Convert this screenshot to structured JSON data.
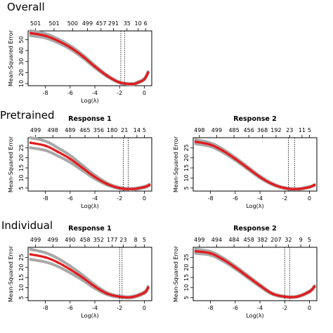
{
  "sections": [
    {
      "title": "Overall",
      "panels": [
        {
          "subtitle": "",
          "ylabel": "Mean-Squared Error",
          "xlabel": "Log(λ)",
          "top_ticks": [
            "501",
            "501",
            "500",
            "499",
            "457",
            "291",
            "35",
            "10",
            "6"
          ],
          "x_ticks": [
            "-8",
            "-6",
            "-4",
            "-2",
            "0"
          ],
          "y_ticks": [
            "10",
            "20",
            "30",
            "40",
            "50"
          ]
        }
      ]
    },
    {
      "title": "Pretrained",
      "panels": [
        {
          "subtitle": "Response 1",
          "ylabel": "Mean-Squared Error",
          "xlabel": "Log(λ)",
          "top_ticks": [
            "499",
            "498",
            "489",
            "465",
            "356",
            "180",
            "21",
            "14",
            "5"
          ],
          "x_ticks": [
            "-8",
            "-6",
            "-4",
            "-2",
            "0"
          ],
          "y_ticks": [
            "5",
            "10",
            "15",
            "20",
            "25"
          ]
        },
        {
          "subtitle": "Response 2",
          "ylabel": "Mean-Squared Error",
          "xlabel": "Log(λ)",
          "top_ticks": [
            "498",
            "499",
            "485",
            "456",
            "368",
            "192",
            "23",
            "11",
            "5"
          ],
          "x_ticks": [
            "-8",
            "-6",
            "-4",
            "-2",
            "0"
          ],
          "y_ticks": [
            "5",
            "10",
            "15",
            "20",
            "25"
          ]
        }
      ]
    },
    {
      "title": "Individual",
      "panels": [
        {
          "subtitle": "Response 1",
          "ylabel": "Mean-Squared Error",
          "xlabel": "Log(λ)",
          "top_ticks": [
            "499",
            "499",
            "490",
            "458",
            "352",
            "177",
            "23",
            "8",
            "5"
          ],
          "x_ticks": [
            "-8",
            "-6",
            "-4",
            "-2",
            "0"
          ],
          "y_ticks": [
            "5",
            "10",
            "15",
            "20",
            "25"
          ]
        },
        {
          "subtitle": "Response 2",
          "ylabel": "Mean-Squared Error",
          "xlabel": "Log(λ)",
          "top_ticks": [
            "499",
            "494",
            "484",
            "458",
            "382",
            "207",
            "32",
            "9",
            "5"
          ],
          "x_ticks": [
            "-8",
            "-6",
            "-4",
            "-2",
            "0"
          ],
          "y_ticks": [
            "5",
            "10",
            "15",
            "20",
            "25"
          ]
        }
      ]
    }
  ],
  "colors": {
    "curve": "#e41a1c",
    "band": "#a8a8a8",
    "axis": "#000000"
  },
  "chart_data": [
    {
      "type": "line",
      "panel": "overall",
      "title": "Overall",
      "subtitle": "",
      "xlabel": "Log(λ)",
      "ylabel": "Mean-Squared Error",
      "xlim": [
        -9.4,
        0.6
      ],
      "ylim": [
        8,
        58
      ],
      "x_ticks": [
        -8,
        -6,
        -4,
        -2,
        0
      ],
      "y_ticks": [
        10,
        20,
        30,
        40,
        50
      ],
      "top_axis": {
        "x": [
          -8.8,
          -7.3,
          -5.8,
          -4.6,
          -3.5,
          -2.5,
          -1.4,
          -0.5,
          0.1
        ],
        "labels": [
          "501",
          "501",
          "500",
          "499",
          "457",
          "291",
          "35",
          "10",
          "6"
        ]
      },
      "vlines": [
        -1.9,
        -1.6
      ],
      "x": [
        -9.2,
        -8.0,
        -7.0,
        -6.0,
        -5.0,
        -4.0,
        -3.0,
        -2.0,
        -1.0,
        -0.5,
        0.0,
        0.3
      ],
      "y": [
        56,
        53.5,
        49,
        43,
        35,
        25.5,
        17,
        11,
        9.5,
        11,
        14,
        20
      ],
      "band": [
        2.2,
        2.0,
        1.8,
        1.6,
        1.4,
        1.1,
        0.7,
        0.4,
        0.4,
        0.5,
        0.6,
        0.8
      ],
      "grid": false,
      "legend": "none"
    },
    {
      "type": "line",
      "panel": "pretrained-response-1",
      "title": "Pretrained",
      "subtitle": "Response 1",
      "xlabel": "Log(λ)",
      "ylabel": "Mean-Squared Error",
      "xlim": [
        -9.4,
        0.6
      ],
      "ylim": [
        3.5,
        30
      ],
      "x_ticks": [
        -8,
        -6,
        -4,
        -2,
        0
      ],
      "y_ticks": [
        5,
        10,
        15,
        20,
        25
      ],
      "top_axis": {
        "x": [
          -8.8,
          -7.4,
          -6.0,
          -4.8,
          -3.7,
          -2.6,
          -1.6,
          -0.6,
          0.0
        ],
        "labels": [
          "499",
          "498",
          "489",
          "465",
          "356",
          "180",
          "21",
          "14",
          "5"
        ]
      },
      "vlines": [
        -1.7,
        -1.3
      ],
      "x": [
        -9.2,
        -8.0,
        -7.0,
        -6.0,
        -5.0,
        -4.0,
        -3.0,
        -2.0,
        -1.0,
        0.0,
        0.4
      ],
      "y": [
        27.5,
        26,
        23,
        19.5,
        15,
        10.5,
        7,
        5,
        4.5,
        5.5,
        6.5
      ],
      "band": [
        2.5,
        2.3,
        2.0,
        1.7,
        1.3,
        0.9,
        0.5,
        0.3,
        0.3,
        0.3,
        0.3
      ],
      "grid": false,
      "legend": "none"
    },
    {
      "type": "line",
      "panel": "pretrained-response-2",
      "title": "Pretrained",
      "subtitle": "Response 2",
      "xlabel": "Log(λ)",
      "ylabel": "Mean-Squared Error",
      "xlim": [
        -9.4,
        0.6
      ],
      "ylim": [
        3.5,
        30
      ],
      "x_ticks": [
        -8,
        -6,
        -4,
        -2,
        0
      ],
      "y_ticks": [
        5,
        10,
        15,
        20,
        25
      ],
      "top_axis": {
        "x": [
          -8.9,
          -7.5,
          -6.1,
          -4.9,
          -3.8,
          -2.7,
          -1.6,
          -0.6,
          0.0
        ],
        "labels": [
          "498",
          "499",
          "485",
          "456",
          "368",
          "192",
          "23",
          "11",
          "5"
        ]
      },
      "vlines": [
        -1.7,
        -1.2
      ],
      "x": [
        -9.2,
        -8.0,
        -7.0,
        -6.0,
        -5.0,
        -4.0,
        -3.0,
        -2.0,
        -1.0,
        0.0,
        0.4
      ],
      "y": [
        28,
        26.5,
        23.5,
        19.5,
        15,
        10.5,
        7,
        5,
        4.5,
        5.5,
        6.5
      ],
      "band": [
        1.0,
        0.9,
        0.8,
        0.7,
        0.6,
        0.5,
        0.3,
        0.2,
        0.2,
        0.2,
        0.2
      ],
      "grid": false,
      "legend": "none"
    },
    {
      "type": "line",
      "panel": "individual-response-1",
      "title": "Individual",
      "subtitle": "Response 1",
      "xlabel": "Log(λ)",
      "ylabel": "Mean-Squared Error",
      "xlim": [
        -9.4,
        0.6
      ],
      "ylim": [
        3.5,
        30
      ],
      "x_ticks": [
        -8,
        -6,
        -4,
        -2,
        0
      ],
      "y_ticks": [
        5,
        10,
        15,
        20,
        25
      ],
      "top_axis": {
        "x": [
          -8.8,
          -7.4,
          -6.0,
          -4.8,
          -3.7,
          -2.6,
          -1.7,
          -0.7,
          0.0
        ],
        "labels": [
          "499",
          "499",
          "490",
          "458",
          "352",
          "177",
          "23",
          "8",
          "5"
        ]
      },
      "vlines": [
        -2.0,
        -1.8
      ],
      "x": [
        -9.2,
        -8.0,
        -7.0,
        -6.0,
        -5.0,
        -4.0,
        -3.0,
        -2.0,
        -1.0,
        0.0,
        0.3
      ],
      "y": [
        26.5,
        25,
        22.5,
        19,
        15,
        10.5,
        7,
        5.5,
        5.3,
        7.5,
        10
      ],
      "band": [
        2.5,
        2.3,
        2.0,
        1.7,
        1.3,
        0.9,
        0.5,
        0.3,
        0.3,
        0.4,
        0.5
      ],
      "grid": false,
      "legend": "none"
    },
    {
      "type": "line",
      "panel": "individual-response-2",
      "title": "Individual",
      "subtitle": "Response 2",
      "xlabel": "Log(λ)",
      "ylabel": "Mean-Squared Error",
      "xlim": [
        -9.4,
        0.6
      ],
      "ylim": [
        3.5,
        30
      ],
      "x_ticks": [
        -8,
        -6,
        -4,
        -2,
        0
      ],
      "y_ticks": [
        5,
        10,
        15,
        20,
        25
      ],
      "top_axis": {
        "x": [
          -8.9,
          -7.5,
          -6.1,
          -4.9,
          -3.8,
          -2.7,
          -1.7,
          -0.7,
          0.0
        ],
        "labels": [
          "499",
          "494",
          "484",
          "458",
          "382",
          "207",
          "32",
          "9",
          "5"
        ]
      },
      "vlines": [
        -2.0,
        -1.6
      ],
      "x": [
        -9.2,
        -8.0,
        -7.0,
        -6.0,
        -5.0,
        -4.0,
        -3.0,
        -2.0,
        -1.0,
        0.0,
        0.4
      ],
      "y": [
        28,
        27,
        24,
        20,
        15.5,
        11,
        7,
        5.5,
        5.5,
        8,
        10.5
      ],
      "band": [
        1.0,
        0.9,
        0.8,
        0.7,
        0.6,
        0.5,
        0.3,
        0.2,
        0.2,
        0.3,
        0.3
      ],
      "grid": false,
      "legend": "none"
    }
  ]
}
